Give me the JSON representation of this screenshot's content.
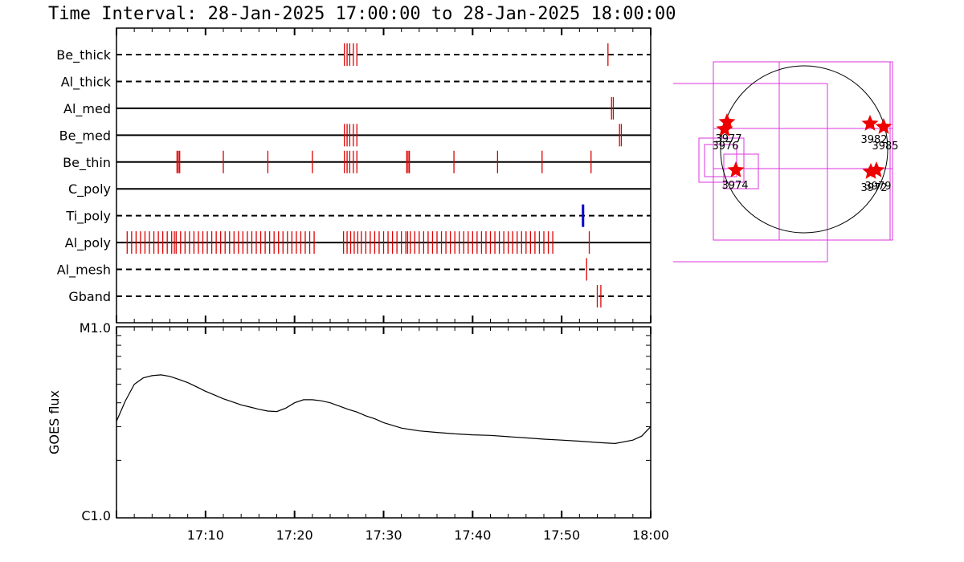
{
  "title": "Time Interval: 28-Jan-2025 17:00:00 to 28-Jan-2025 18:00:00",
  "colors": {
    "event": "#dd0000",
    "ti_event": "#0000cc",
    "box": "#dd33dd",
    "star": "#ee0000"
  },
  "chart_data": [
    {
      "type": "event-raster",
      "xlim_minutes": [
        0,
        60
      ],
      "x_unit": "minutes after 17:00",
      "rows": [
        {
          "label": "Be_thick",
          "line": "dashed",
          "events": [
            25.6,
            25.9,
            26.2,
            26.6,
            27.0,
            55.2
          ]
        },
        {
          "label": "Al_thick",
          "line": "dashed",
          "events": []
        },
        {
          "label": "Al_med",
          "line": "solid",
          "events": [
            55.6,
            55.8
          ]
        },
        {
          "label": "Be_med",
          "line": "solid",
          "events": [
            25.6,
            25.9,
            26.2,
            26.6,
            27.0,
            56.5,
            56.7
          ]
        },
        {
          "label": "Be_thin",
          "line": "solid",
          "events": [
            6.8,
            6.95,
            7.1,
            12.0,
            17.0,
            22.0,
            25.6,
            25.9,
            26.2,
            26.6,
            27.0,
            32.6,
            32.75,
            32.9,
            37.9,
            42.8,
            47.8,
            53.3
          ]
        },
        {
          "label": "C_poly",
          "line": "solid",
          "events": []
        },
        {
          "label": "Ti_poly",
          "line": "dashed",
          "events": [],
          "ti_events": [
            52.4
          ]
        },
        {
          "label": "Al_poly",
          "line": "solid",
          "events": [
            1.2,
            1.7,
            2.2,
            2.7,
            3.2,
            3.7,
            4.2,
            4.7,
            5.2,
            5.7,
            6.2,
            6.5,
            6.7,
            7.2,
            7.7,
            8.2,
            8.7,
            9.2,
            9.7,
            10.2,
            10.7,
            11.2,
            11.7,
            12.2,
            12.7,
            13.2,
            13.7,
            14.2,
            14.7,
            15.2,
            15.7,
            16.2,
            16.7,
            17.2,
            17.7,
            18.2,
            18.7,
            19.2,
            19.7,
            20.2,
            20.7,
            21.2,
            21.7,
            22.2,
            25.5,
            25.9,
            26.3,
            26.7,
            27.1,
            27.5,
            28.0,
            28.5,
            29.0,
            29.5,
            30.0,
            30.5,
            31.0,
            31.5,
            32.0,
            32.5,
            32.7,
            33.0,
            33.5,
            34.0,
            34.5,
            35.0,
            35.5,
            36.0,
            36.5,
            37.0,
            37.5,
            38.0,
            38.5,
            39.0,
            39.5,
            40.0,
            40.5,
            41.0,
            41.5,
            42.0,
            42.5,
            43.0,
            43.5,
            44.0,
            44.5,
            45.0,
            45.5,
            46.0,
            46.5,
            47.0,
            47.5,
            48.0,
            48.5,
            49.0,
            53.1
          ]
        },
        {
          "label": "Al_mesh",
          "line": "dashed",
          "events": [
            52.8
          ]
        },
        {
          "label": "Gband",
          "line": "dashed",
          "events": [
            54.0,
            54.4
          ]
        }
      ],
      "xticks_major": [
        10,
        20,
        30,
        40,
        50,
        60
      ]
    },
    {
      "type": "line",
      "ylabel": "GOES flux",
      "yscale": "log",
      "ytick_labels": [
        "M1.0",
        "C1.0"
      ],
      "xlim_minutes": [
        0,
        60
      ],
      "xtick_labels": [
        "17:10",
        "17:20",
        "17:30",
        "17:40",
        "17:50",
        "18:00"
      ],
      "xticks_minutes": [
        10,
        20,
        30,
        40,
        50,
        60
      ],
      "x": [
        0,
        1,
        2,
        3,
        4,
        5,
        6,
        7,
        8,
        9,
        10,
        11,
        12,
        13,
        14,
        15,
        16,
        17,
        18,
        19,
        20,
        21,
        22,
        23,
        24,
        25,
        26,
        27,
        28,
        29,
        30,
        32,
        34,
        36,
        38,
        40,
        42,
        44,
        46,
        48,
        50,
        52,
        54,
        56,
        58,
        59,
        60
      ],
      "y_watts": [
        3.2e-06,
        4.1e-06,
        5e-06,
        5.4e-06,
        5.55e-06,
        5.6e-06,
        5.5e-06,
        5.3e-06,
        5.1e-06,
        4.85e-06,
        4.6e-06,
        4.4e-06,
        4.2e-06,
        4.05e-06,
        3.9e-06,
        3.8e-06,
        3.7e-06,
        3.62e-06,
        3.6e-06,
        3.75e-06,
        4e-06,
        4.15e-06,
        4.15e-06,
        4.1e-06,
        4e-06,
        3.85e-06,
        3.7e-06,
        3.58e-06,
        3.42e-06,
        3.3e-06,
        3.15e-06,
        2.95e-06,
        2.85e-06,
        2.8e-06,
        2.75e-06,
        2.72e-06,
        2.7e-06,
        2.66e-06,
        2.62e-06,
        2.58e-06,
        2.55e-06,
        2.52e-06,
        2.48e-06,
        2.45e-06,
        2.55e-06,
        2.68e-06,
        3e-06
      ]
    }
  ],
  "solar_map": {
    "regions": [
      "3977",
      "3976",
      "3974",
      "3982",
      "3985",
      "3972",
      "3979"
    ]
  }
}
